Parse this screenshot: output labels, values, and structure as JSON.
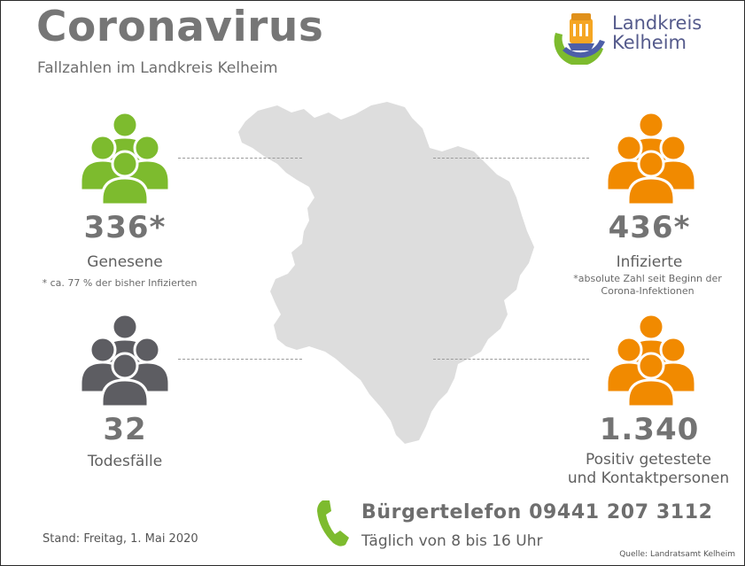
{
  "header": {
    "title": "Coronavirus",
    "subtitle": "Fallzahlen im Landkreis Kelheim"
  },
  "logo": {
    "line1": "Landkreis",
    "line2": "Kelheim"
  },
  "stats": {
    "recovered": {
      "value": "336*",
      "label": "Genesene",
      "note": "* ca. 77 % der bisher Infizierten",
      "color": "#7dbb2e"
    },
    "infected": {
      "value": "436*",
      "label": "Infizierte",
      "note": "*absolute Zahl seit Beginn der Corona-Infektionen",
      "color": "#f18a00"
    },
    "deaths": {
      "value": "32",
      "label": "Todesfälle",
      "color": "#5d5d62"
    },
    "positive_contacts": {
      "value": "1.340",
      "label_line1": "Positiv getestete",
      "label_line2": "und Kontaktpersonen",
      "color": "#f18a00"
    }
  },
  "phone": {
    "title": "Bürgertelefon 09441 207 3112",
    "hours": "Täglich von 8 bis 16 Uhr",
    "icon": "phone-icon",
    "color": "#7dbb2e"
  },
  "footer": {
    "stand": "Stand: Freitag, 1. Mai 2020",
    "source": "Quelle: Landratsamt Kelheim"
  },
  "colors": {
    "map": "#dddddd",
    "text": "#6e6e6e"
  }
}
